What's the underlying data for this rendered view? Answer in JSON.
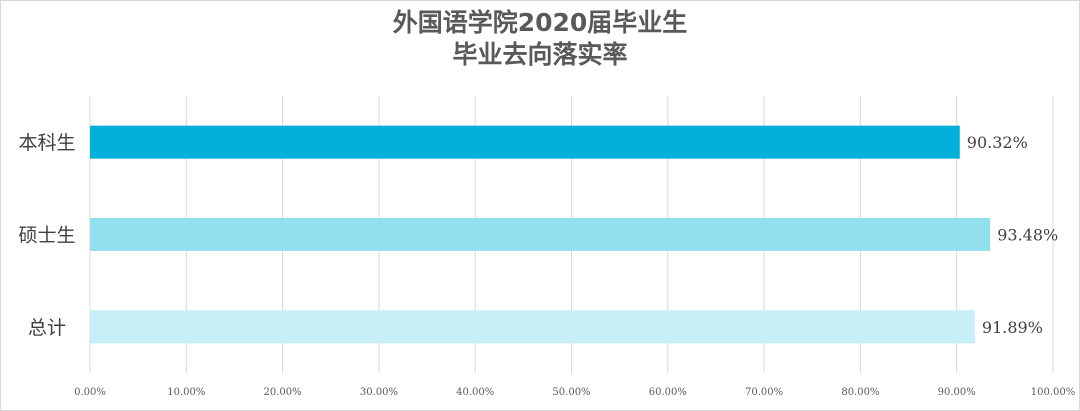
{
  "chart_data": {
    "type": "bar",
    "orientation": "horizontal",
    "title_line1": "外国语学院2020届毕业生",
    "title_line2": "毕业去向落实率",
    "categories": [
      "本科生",
      "硕士生",
      "总计"
    ],
    "values": [
      90.32,
      93.48,
      91.89
    ],
    "value_labels": [
      "90.32%",
      "93.48%",
      "91.89%"
    ],
    "colors": [
      "#00b0d8",
      "#92dff0",
      "#c8eff8"
    ],
    "xlim": [
      0,
      100
    ],
    "x_ticks": [
      "0.00%",
      "10.00%",
      "20.00%",
      "30.00%",
      "40.00%",
      "50.00%",
      "60.00%",
      "70.00%",
      "80.00%",
      "90.00%",
      "100.00%"
    ],
    "grid": true,
    "legend": "none"
  }
}
